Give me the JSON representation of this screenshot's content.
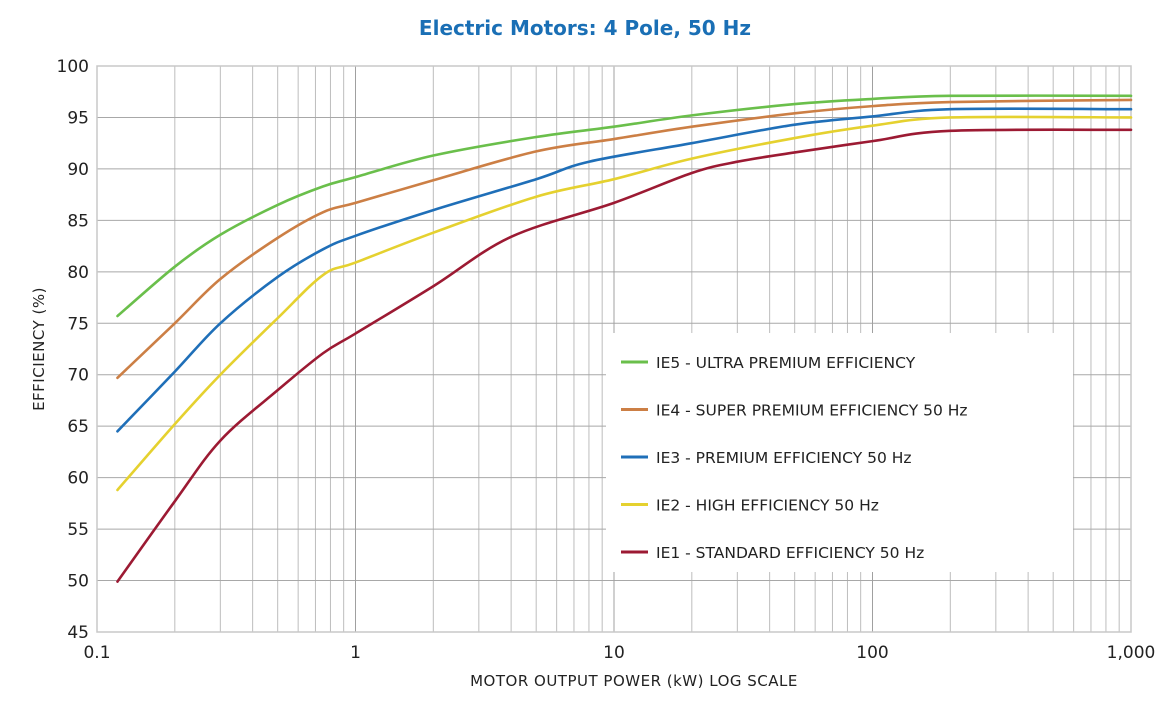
{
  "chart_data": {
    "type": "line",
    "title": "Electric Motors: 4 Pole, 50 Hz",
    "xlabel": "MOTOR OUTPUT POWER (kW) LOG SCALE",
    "ylabel": "EFFICIENCY (%)",
    "x_scale": "log",
    "xlim": [
      0.1,
      1000
    ],
    "ylim": [
      45,
      100
    ],
    "x_ticks": [
      0.1,
      1,
      10,
      100,
      1000
    ],
    "x_tick_labels": [
      "0.1",
      "1",
      "10",
      "100",
      "1,000"
    ],
    "y_ticks": [
      45,
      50,
      55,
      60,
      65,
      70,
      75,
      80,
      85,
      90,
      95,
      100
    ],
    "grid": true,
    "legend_position": "center-right",
    "title_color": "#1a6fb5",
    "series": [
      {
        "name": "IE5 - ULTRA PREMIUM EFFICIENCY",
        "color": "#6abf4b",
        "x": [
          0.12,
          0.2,
          0.3,
          0.5,
          0.75,
          1,
          2,
          5,
          10,
          20,
          50,
          100,
          200,
          1000
        ],
        "y": [
          75.7,
          80.5,
          83.6,
          86.5,
          88.3,
          89.2,
          91.3,
          93.1,
          94.1,
          95.2,
          96.3,
          96.8,
          97.1,
          97.1
        ]
      },
      {
        "name": "IE4 - SUPER PREMIUM EFFICIENCY 50 Hz",
        "color": "#cc7f45",
        "x": [
          0.12,
          0.2,
          0.3,
          0.5,
          0.75,
          1,
          2,
          5,
          10,
          20,
          50,
          100,
          200,
          1000
        ],
        "y": [
          69.7,
          75.0,
          79.3,
          83.3,
          85.8,
          86.7,
          88.9,
          91.7,
          92.9,
          94.1,
          95.4,
          96.1,
          96.5,
          96.7
        ]
      },
      {
        "name": "IE3 - PREMIUM EFFICIENCY 50 Hz",
        "color": "#1f6fb8",
        "x": [
          0.12,
          0.2,
          0.3,
          0.5,
          0.75,
          1,
          2,
          5,
          8,
          20,
          50,
          100,
          200,
          1000
        ],
        "y": [
          64.5,
          70.3,
          75.0,
          79.5,
          82.2,
          83.5,
          86.0,
          89.0,
          90.7,
          92.5,
          94.3,
          95.1,
          95.8,
          95.8
        ]
      },
      {
        "name": "IE2 - HIGH EFFICIENCY 50 Hz",
        "color": "#e5d12f",
        "x": [
          0.12,
          0.2,
          0.3,
          0.5,
          0.75,
          1,
          2,
          5,
          10,
          20,
          50,
          100,
          200,
          1000
        ],
        "y": [
          58.8,
          65.2,
          70.0,
          75.5,
          79.7,
          80.9,
          83.8,
          87.3,
          89.0,
          91.0,
          93.0,
          94.2,
          95.0,
          95.0
        ]
      },
      {
        "name": "IE1 - STANDARD EFFICIENCY 50 Hz",
        "color": "#9c1a33",
        "x": [
          0.12,
          0.2,
          0.3,
          0.5,
          0.75,
          1,
          2,
          4,
          10,
          20,
          30,
          50,
          100,
          200,
          1000
        ],
        "y": [
          49.9,
          57.7,
          63.6,
          68.5,
          72.1,
          74.0,
          78.6,
          83.4,
          86.7,
          89.6,
          90.7,
          91.6,
          92.7,
          93.7,
          93.8
        ]
      }
    ]
  }
}
